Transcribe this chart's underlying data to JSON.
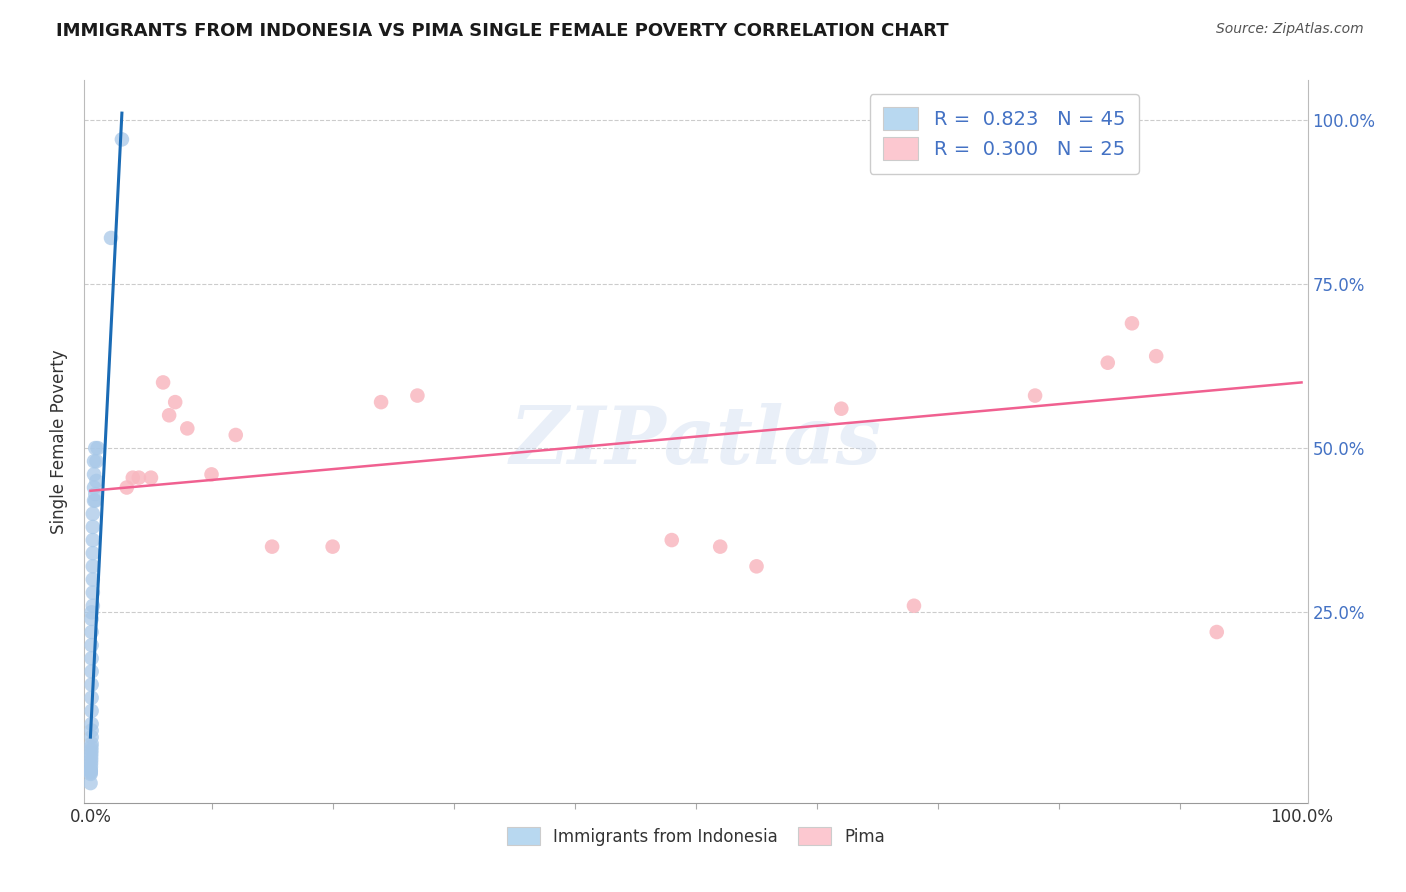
{
  "title": "IMMIGRANTS FROM INDONESIA VS PIMA SINGLE FEMALE POVERTY CORRELATION CHART",
  "source": "Source: ZipAtlas.com",
  "ylabel": "Single Female Poverty",
  "legend_label1": "Immigrants from Indonesia",
  "legend_label2": "Pima",
  "R1": 0.823,
  "N1": 45,
  "R2": 0.3,
  "N2": 25,
  "color_blue": "#a8c8e8",
  "color_blue_line": "#1a6bb5",
  "color_pink": "#f8b8c0",
  "color_pink_line": "#f06090",
  "color_legend_blue": "#b8d8f0",
  "color_legend_pink": "#fcc8d0",
  "xlim": [
    -0.005,
    1.005
  ],
  "ylim": [
    -0.04,
    1.06
  ],
  "xtick_positions": [
    0.0,
    1.0
  ],
  "xtick_labels": [
    "0.0%",
    "100.0%"
  ],
  "ytick_positions": [
    0.25,
    0.5,
    0.75,
    1.0
  ],
  "ytick_labels": [
    "25.0%",
    "50.0%",
    "75.0%",
    "100.0%"
  ],
  "blue_scatter_x": [
    0.026,
    0.017,
    0.006,
    0.005,
    0.005,
    0.004,
    0.004,
    0.004,
    0.003,
    0.003,
    0.003,
    0.003,
    0.002,
    0.002,
    0.002,
    0.002,
    0.002,
    0.002,
    0.002,
    0.002,
    0.001,
    0.001,
    0.001,
    0.001,
    0.001,
    0.001,
    0.001,
    0.001,
    0.001,
    0.001,
    0.001,
    0.001,
    0.001,
    0.0008,
    0.0008,
    0.0007,
    0.0006,
    0.0006,
    0.0005,
    0.0004,
    0.0003,
    0.0003,
    0.0002,
    0.0002,
    0.0001
  ],
  "blue_scatter_y": [
    0.97,
    0.82,
    0.5,
    0.48,
    0.45,
    0.43,
    0.42,
    0.5,
    0.48,
    0.46,
    0.44,
    0.42,
    0.4,
    0.38,
    0.36,
    0.34,
    0.32,
    0.3,
    0.28,
    0.26,
    0.25,
    0.24,
    0.22,
    0.2,
    0.18,
    0.16,
    0.14,
    0.12,
    0.1,
    0.08,
    0.07,
    0.06,
    0.05,
    0.045,
    0.04,
    0.035,
    0.03,
    0.025,
    0.02,
    0.015,
    0.01,
    0.008,
    0.006,
    0.004,
    -0.01
  ],
  "pink_scatter_x": [
    0.72,
    0.03,
    0.05,
    0.065,
    0.24,
    0.27,
    0.52,
    0.62,
    0.78,
    0.84,
    0.86,
    0.88,
    0.93,
    0.035,
    0.04,
    0.06,
    0.07,
    0.08,
    0.1,
    0.12,
    0.15,
    0.2,
    0.48,
    0.55,
    0.68
  ],
  "pink_scatter_y": [
    0.97,
    0.44,
    0.455,
    0.55,
    0.57,
    0.58,
    0.35,
    0.56,
    0.58,
    0.63,
    0.69,
    0.64,
    0.22,
    0.455,
    0.455,
    0.6,
    0.57,
    0.53,
    0.46,
    0.52,
    0.35,
    0.35,
    0.36,
    0.32,
    0.26
  ],
  "blue_line_x": [
    0.0,
    0.026
  ],
  "blue_line_y": [
    0.06,
    1.01
  ],
  "pink_line_x": [
    0.0,
    1.0
  ],
  "pink_line_y": [
    0.435,
    0.6
  ],
  "watermark": "ZIPatlas",
  "background_color": "#ffffff",
  "grid_color": "#cccccc",
  "right_tick_color": "#4472c4"
}
